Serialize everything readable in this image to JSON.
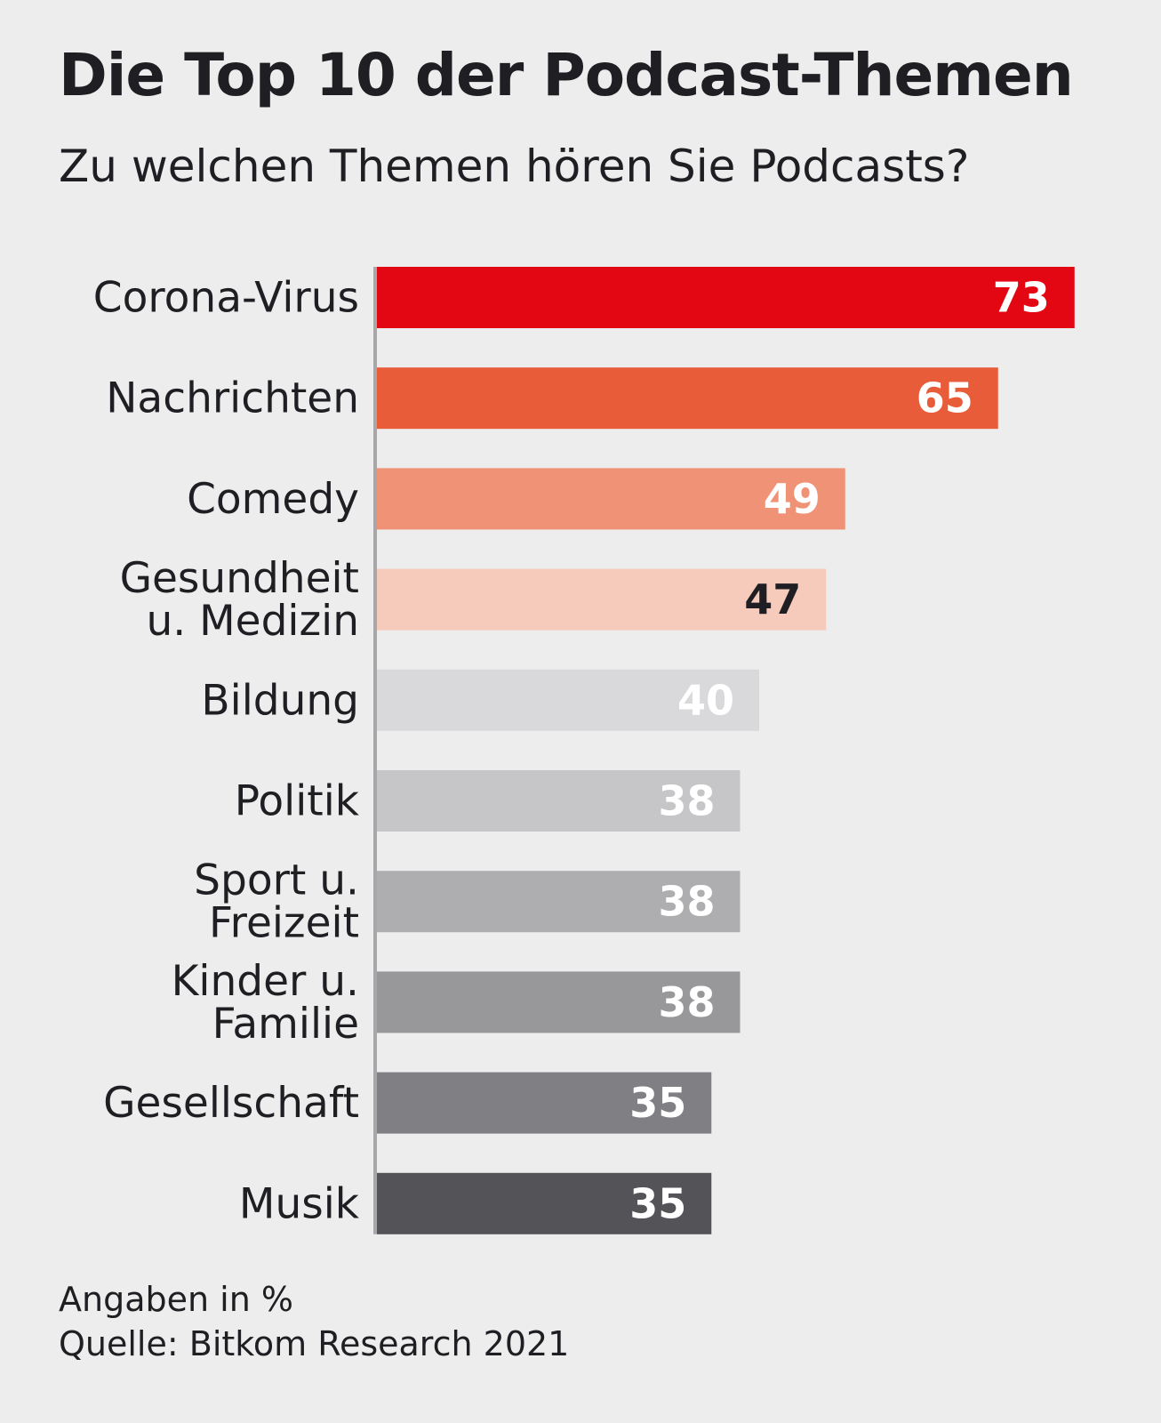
{
  "chart_data": {
    "type": "bar",
    "orientation": "horizontal",
    "title": "Die Top 10 der Podcast-Themen",
    "subtitle": "Zu welchen Themen hören Sie Podcasts?",
    "categories": [
      [
        "Corona-Virus"
      ],
      [
        "Nachrichten"
      ],
      [
        "Comedy"
      ],
      [
        "Gesundheit",
        "u. Medizin"
      ],
      [
        "Bildung"
      ],
      [
        "Politik"
      ],
      [
        "Sport u.",
        "Freizeit"
      ],
      [
        "Kinder u.",
        "Familie"
      ],
      [
        "Gesellschaft"
      ],
      [
        "Musik"
      ]
    ],
    "values": [
      73,
      65,
      49,
      47,
      40,
      38,
      38,
      38,
      35,
      35
    ],
    "bar_colors": [
      "#e30613",
      "#e95c3a",
      "#f09275",
      "#f6cbbb",
      "#d9d9db",
      "#c6c6c9",
      "#aeaeb1",
      "#98989b",
      "#807f83",
      "#545358"
    ],
    "value_label_colors": [
      "#ffffff",
      "#ffffff",
      "#ffffff",
      "#1f1f23",
      "#ffffff",
      "#ffffff",
      "#ffffff",
      "#ffffff",
      "#ffffff",
      "#ffffff"
    ],
    "grid": false,
    "legend": "none"
  },
  "footer": {
    "unit_note": "Angaben in %",
    "source": "Quelle: Bitkom Research 2021"
  }
}
